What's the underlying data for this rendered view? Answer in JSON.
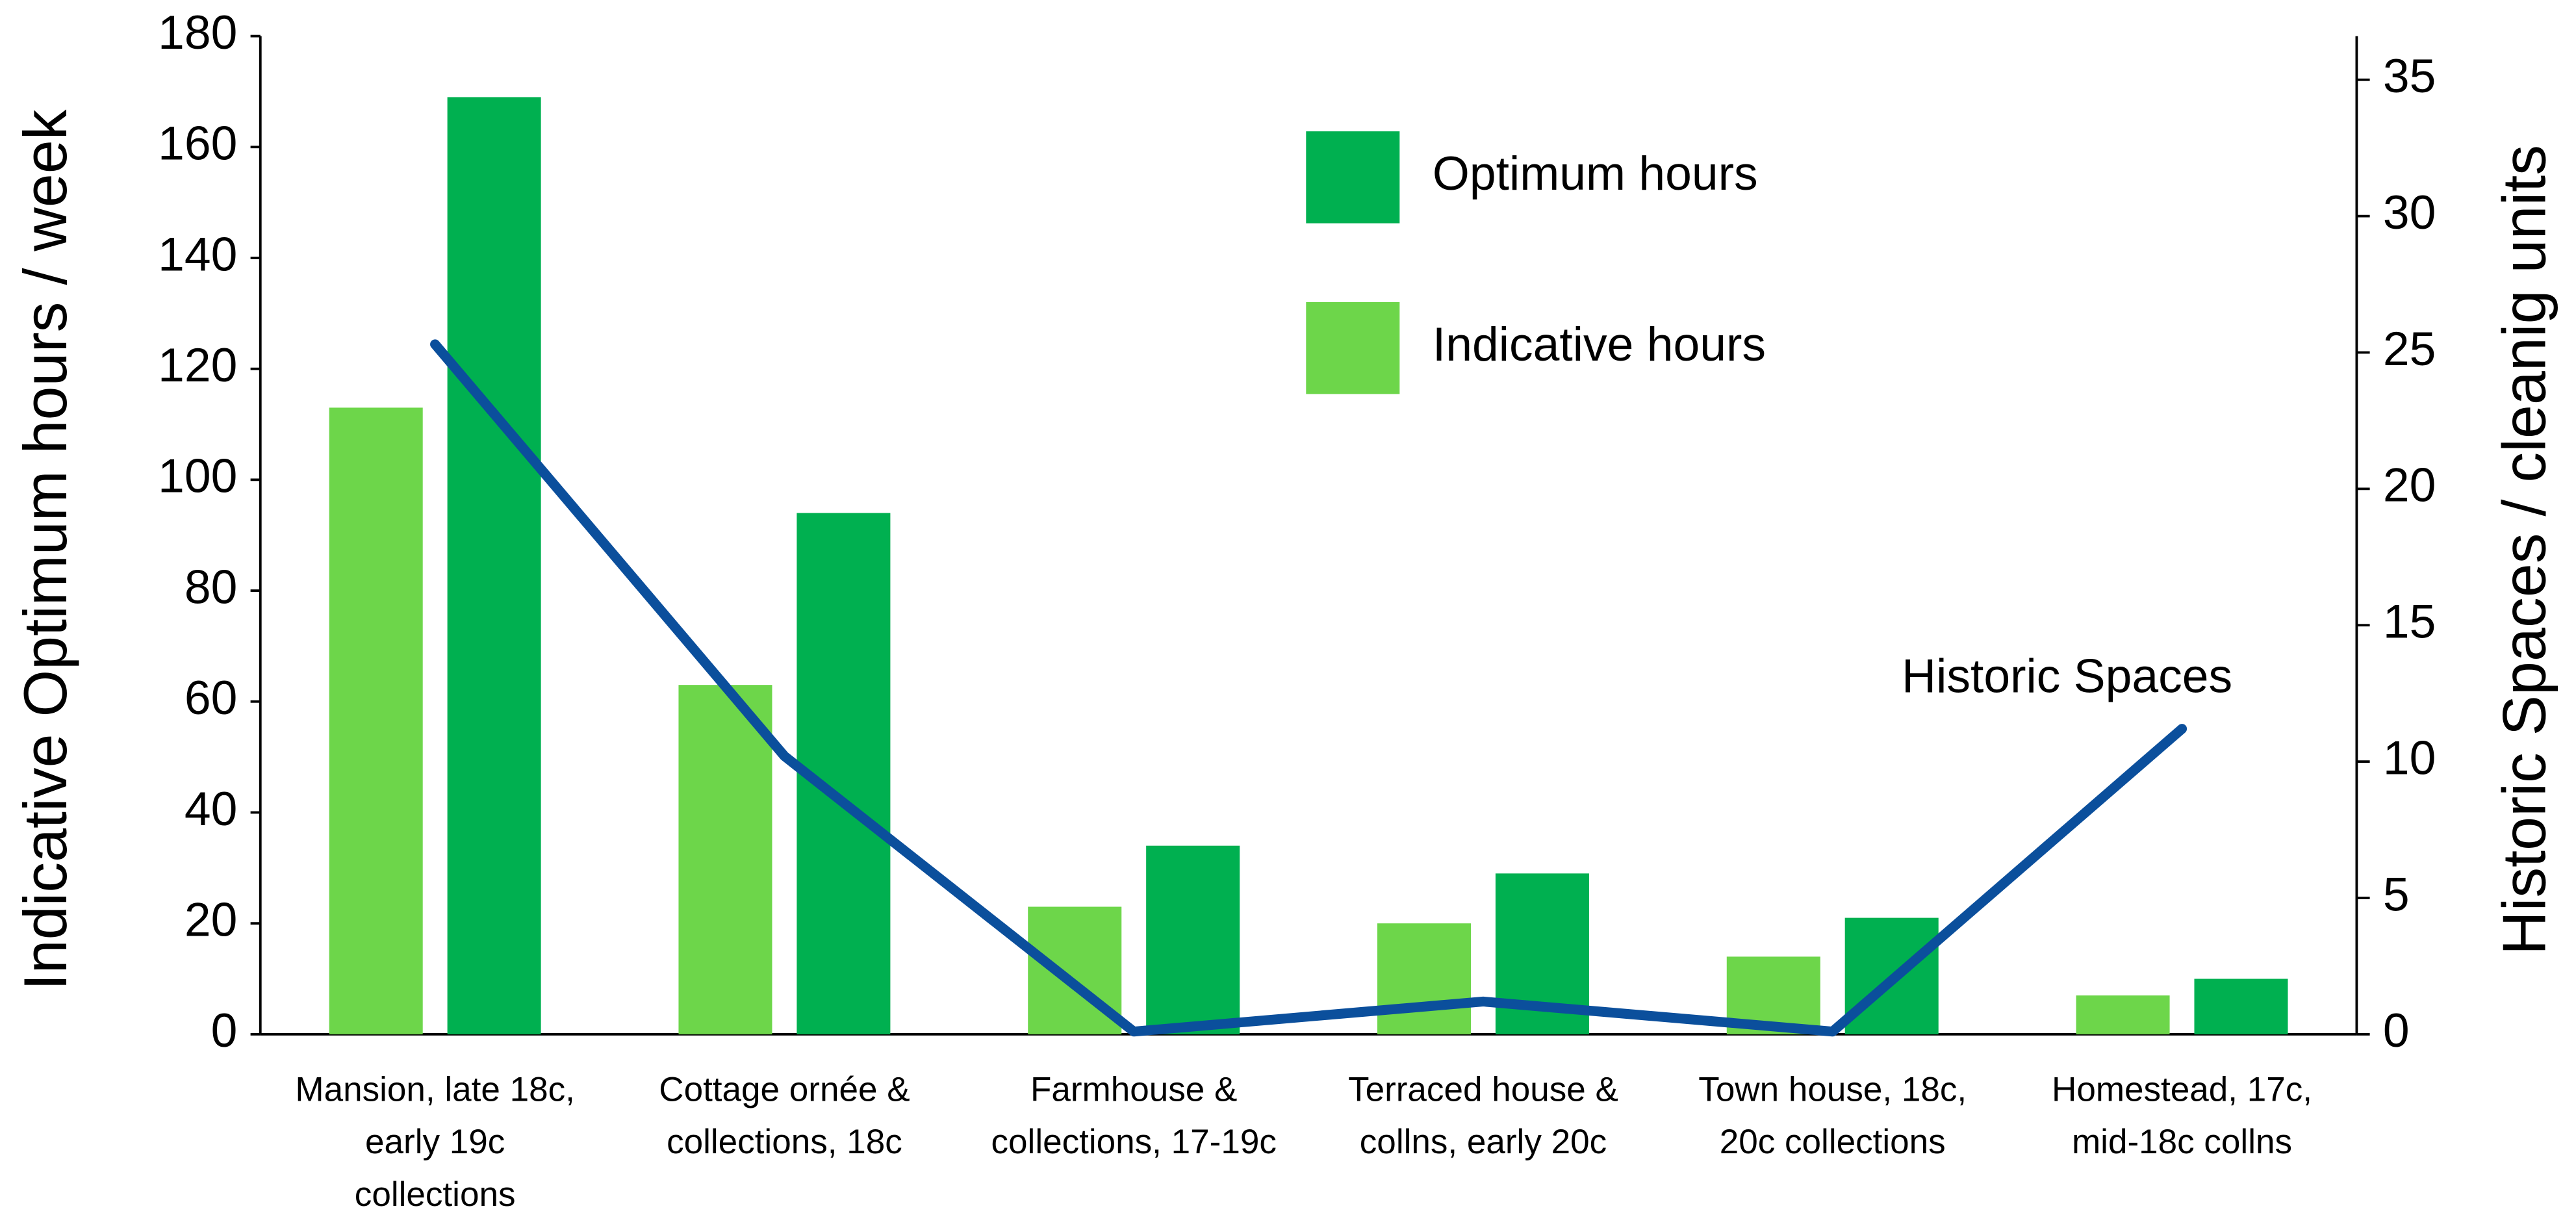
{
  "chart_data": {
    "type": "bar",
    "y_label": "Indicative  Optimum hours / week",
    "y2_label": "Historic Spaces / cleanig units",
    "categories": [
      "Mansion, late 18c,\nearly 19c\ncollections",
      "Cottage ornée &\ncollections, 18c",
      "Farmhouse &\ncollections, 17-19c",
      "Terraced house &\ncollns, early 20c",
      "Town house, 18c,\n20c collections",
      "Homestead, 17c,\nmid-18c collns"
    ],
    "series": [
      {
        "name": "Indicative hours",
        "color": "#6dd64a",
        "type": "bar",
        "values": [
          113,
          63,
          23,
          20,
          14,
          7
        ]
      },
      {
        "name": "Optimum hours",
        "color": "#00b050",
        "type": "bar",
        "values": [
          169,
          94,
          34,
          29,
          21,
          10
        ]
      },
      {
        "name": "Historic Spaces",
        "color": "#0b4f9c",
        "type": "line",
        "axis": "y2",
        "values": [
          25.3,
          10.2,
          0.1,
          1.2,
          0.1,
          11.2
        ]
      }
    ],
    "ylim": [
      0,
      180
    ],
    "yticks": [
      0,
      20,
      40,
      60,
      80,
      100,
      120,
      140,
      160,
      180
    ],
    "y2lim": [
      0,
      36.6
    ],
    "y2ticks": [
      0,
      5,
      10,
      15,
      20,
      25,
      30,
      35
    ],
    "legend_order": [
      1,
      0
    ]
  }
}
